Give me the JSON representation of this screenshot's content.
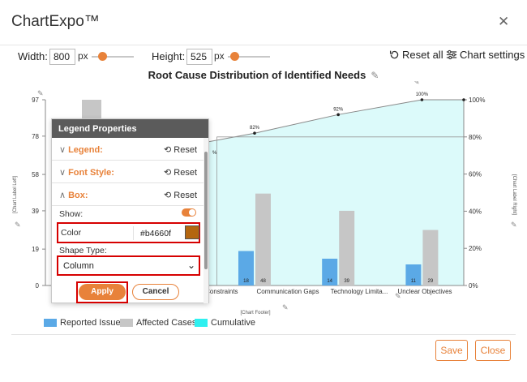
{
  "app": {
    "title": "ChartExpo™",
    "close_glyph": "✕"
  },
  "toolbar": {
    "width_label": "Width:",
    "width_value": "800",
    "height_label": "Height:",
    "height_value": "525",
    "unit": "px",
    "reset_label": "Reset all",
    "settings_label": "Chart settings"
  },
  "chart_data": {
    "type": "bar",
    "title": "Root Cause Distribution of Identified Needs",
    "categories": [
      "",
      "Resource Constraints",
      "Communication Gaps",
      "Technology Limita...",
      "Unclear Objectives"
    ],
    "visible_category_labels": [
      "ce Constraints",
      "Communication Gaps",
      "Technology Limita...",
      "Unclear Objectives"
    ],
    "series": [
      {
        "name": "Reported Issues",
        "values": [
          null,
          16,
          18,
          14,
          11
        ]
      },
      {
        "name": "Affected Cases",
        "values": [
          null,
          61,
          48,
          39,
          29
        ]
      },
      {
        "name": "Cumulative",
        "values": [
          null,
          null,
          82,
          92,
          100
        ]
      }
    ],
    "bar_labels_blue": [
      "",
      "",
      "18",
      "14",
      "11"
    ],
    "bar_labels_gray": [
      "",
      "61",
      "48",
      "39",
      "29"
    ],
    "cumulative_labels": [
      "",
      "%",
      "82%",
      "92%",
      "100%"
    ],
    "y_left_ticks": [
      "0",
      "19",
      "39",
      "58",
      "78",
      "97"
    ],
    "y_right_ticks": [
      "0%",
      "20%",
      "40%",
      "60%",
      "80%",
      "100%"
    ],
    "ylim_left": [
      0,
      97
    ],
    "ylim_right": [
      0,
      100
    ],
    "ylabel_left": "[Chart Label Left]",
    "ylabel_right": "[Chart Label Right]",
    "footer_label": "[Chart Footer]",
    "reference_line": "80%",
    "legend_position": "bottom-left",
    "colors": {
      "blue": "#5ba9e6",
      "gray": "#c6c6c6",
      "cumulative_fill": "#dcfafa",
      "cumulative_line": "#888888"
    }
  },
  "legend": {
    "items": [
      {
        "label": "Reported Issues",
        "color": "#5ba9e6"
      },
      {
        "label": "Affected Cases",
        "color": "#c6c6c6"
      },
      {
        "label": "Cumulative",
        "color": "#2ff0f0"
      }
    ]
  },
  "panel": {
    "title": "Legend Properties",
    "sections": [
      {
        "label": "Legend:",
        "chevron": "∨",
        "reset": "Reset"
      },
      {
        "label": "Font Style:",
        "chevron": "∨",
        "reset": "Reset"
      },
      {
        "label": "Box:",
        "chevron": "∧",
        "reset": "Reset"
      }
    ],
    "show_label": "Show:",
    "color_label": "Color",
    "color_value": "#b4660f",
    "shape_type_label": "Shape Type:",
    "shape_type_value": "Column",
    "apply_label": "Apply",
    "cancel_label": "Cancel"
  },
  "footer": {
    "save_label": "Save",
    "close_label": "Close"
  },
  "colors": {
    "accent": "#e8823a",
    "highlight": "#d60000"
  }
}
